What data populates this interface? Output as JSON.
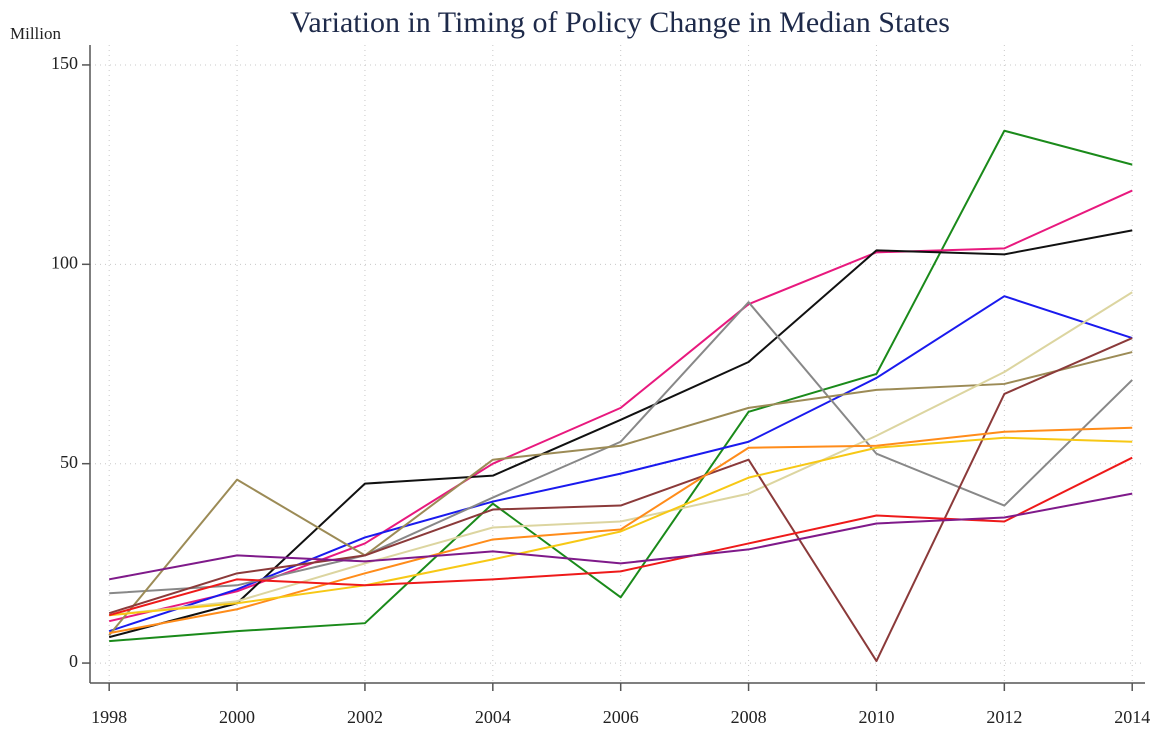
{
  "chart_data": {
    "type": "line",
    "title": "Variation in Timing of Policy Change in Median States",
    "y_label": "Million",
    "x": [
      1998,
      2000,
      2002,
      2004,
      2006,
      2008,
      2010,
      2012,
      2014
    ],
    "xlim": [
      1997.7,
      2014.2
    ],
    "xticks": [
      1998,
      2000,
      2002,
      2004,
      2006,
      2008,
      2010,
      2012,
      2014
    ],
    "ylim": [
      -5,
      155
    ],
    "yticks": [
      0,
      50,
      100,
      150
    ],
    "grid": true,
    "series": [
      {
        "color": "#1a8a1a",
        "values": [
          5.5,
          8,
          10,
          40,
          16.5,
          63,
          72.5,
          133.5,
          125
        ]
      },
      {
        "color": "#e8197e",
        "values": [
          10.5,
          18,
          30,
          50,
          64,
          90,
          103,
          104,
          118.5
        ]
      },
      {
        "color": "#111111",
        "values": [
          6.5,
          15,
          45,
          47,
          61,
          75.5,
          103.5,
          102.5,
          108.5
        ]
      },
      {
        "color": "#1a1aee",
        "values": [
          8,
          18.5,
          31.5,
          40.5,
          47.5,
          55.5,
          71.5,
          92,
          81.5
        ]
      },
      {
        "color": "#888888",
        "values": [
          17.5,
          19.5,
          27,
          41.5,
          55.5,
          90.5,
          52.5,
          39.5,
          71
        ]
      },
      {
        "color": "#9c8b56",
        "values": [
          7,
          46,
          27,
          51,
          54.5,
          64,
          68.5,
          70,
          78
        ]
      },
      {
        "color": "#dcd5a0",
        "values": [
          12,
          15.5,
          25,
          34,
          35.5,
          42.5,
          57,
          73,
          93
        ]
      },
      {
        "color": "#8b3a3a",
        "values": [
          12.5,
          22.5,
          27,
          38.5,
          39.5,
          51,
          0.5,
          67.5,
          81.5
        ]
      },
      {
        "color": "#ff8c1a",
        "values": [
          7.5,
          13.5,
          22.5,
          31,
          33.5,
          54,
          54.5,
          58,
          59
        ]
      },
      {
        "color": "#f7c815",
        "values": [
          12,
          15,
          19.5,
          26,
          33,
          46.5,
          54,
          56.5,
          55.5
        ]
      },
      {
        "color": "#ee1a1a",
        "values": [
          12,
          21,
          19.5,
          21,
          23,
          30,
          37,
          35.5,
          51.5
        ]
      },
      {
        "color": "#7f1a8a",
        "values": [
          21,
          27,
          25.5,
          28,
          25,
          28.5,
          35,
          36.5,
          42.5
        ]
      }
    ]
  }
}
